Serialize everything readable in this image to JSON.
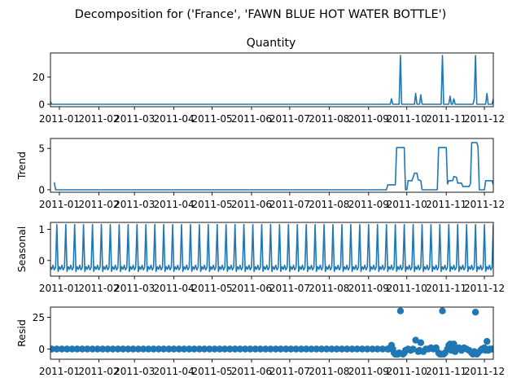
{
  "figure_title": "Decomposition for ('France', 'FAWN BLUE HOT WATER BOTTLE')",
  "colors": {
    "line": "#1f77b4",
    "axes": "#000000",
    "background": "#ffffff"
  },
  "chart_data": [
    {
      "type": "line",
      "title": "Quantity",
      "ylabel": "",
      "ylim": [
        -1.8,
        37.8
      ],
      "yticks": [
        0,
        20
      ],
      "grid": false,
      "x_range_days": [
        -7,
        341
      ],
      "xtick_labels": [
        "2011-01",
        "2011-02",
        "2011-03",
        "2011-04",
        "2011-05",
        "2011-06",
        "2011-07",
        "2011-08",
        "2011-09",
        "2011-10",
        "2011-11",
        "2011-12"
      ],
      "xtick_days": [
        0,
        31,
        59,
        90,
        120,
        151,
        181,
        212,
        243,
        273,
        304,
        334
      ],
      "series": [
        {
          "points": [
            [
              -7,
              2
            ],
            [
              -6,
              0
            ],
            [
              260,
              0
            ],
            [
              261,
              4
            ],
            [
              262,
              0
            ],
            [
              267,
              0
            ],
            [
              268,
              36
            ],
            [
              269,
              0
            ],
            [
              279,
              0
            ],
            [
              280,
              8
            ],
            [
              281,
              0
            ],
            [
              283,
              0
            ],
            [
              284,
              7
            ],
            [
              285,
              0
            ],
            [
              300,
              0
            ],
            [
              301,
              36
            ],
            [
              302,
              0
            ],
            [
              306,
              0
            ],
            [
              307,
              6
            ],
            [
              308,
              0
            ],
            [
              309,
              0
            ],
            [
              310,
              4
            ],
            [
              311,
              0
            ],
            [
              325,
              0
            ],
            [
              326,
              4
            ],
            [
              327,
              36
            ],
            [
              328,
              0
            ],
            [
              335,
              0
            ],
            [
              336,
              8
            ],
            [
              337,
              0
            ],
            [
              340,
              0
            ],
            [
              341,
              4
            ]
          ]
        }
      ]
    },
    {
      "type": "line",
      "title": "",
      "ylabel": "Trend",
      "ylim": [
        -0.3,
        6.2
      ],
      "yticks": [
        0,
        5
      ],
      "grid": false,
      "x_range_days": [
        -7,
        341
      ],
      "xtick_labels": [
        "2011-01",
        "2011-02",
        "2011-03",
        "2011-04",
        "2011-05",
        "2011-06",
        "2011-07",
        "2011-08",
        "2011-09",
        "2011-10",
        "2011-11",
        "2011-12"
      ],
      "xtick_days": [
        0,
        31,
        59,
        90,
        120,
        151,
        181,
        212,
        243,
        273,
        304,
        334
      ],
      "series": [
        {
          "points": [
            [
              -4,
              0.9
            ],
            [
              -3,
              0
            ],
            [
              257,
              0
            ],
            [
              258,
              0.6
            ],
            [
              264,
              0.6
            ],
            [
              265,
              5.1
            ],
            [
              271,
              5.1
            ],
            [
              272,
              0
            ],
            [
              273,
              0
            ],
            [
              274,
              1.1
            ],
            [
              277,
              1.1
            ],
            [
              278,
              1.5
            ],
            [
              279,
              2
            ],
            [
              281,
              2
            ],
            [
              282,
              1.2
            ],
            [
              284,
              1.1
            ],
            [
              285,
              0
            ],
            [
              297,
              0
            ],
            [
              298,
              5.1
            ],
            [
              304,
              5.1
            ],
            [
              305,
              0.7
            ],
            [
              306,
              1.1
            ],
            [
              309,
              1.1
            ],
            [
              310,
              1.6
            ],
            [
              312,
              1.5
            ],
            [
              313,
              0.8
            ],
            [
              316,
              0.8
            ],
            [
              317,
              0.4
            ],
            [
              322,
              0.4
            ],
            [
              323,
              0.7
            ],
            [
              324,
              5.7
            ],
            [
              328,
              5.7
            ],
            [
              329,
              5.2
            ],
            [
              330,
              0
            ],
            [
              334,
              0
            ],
            [
              335,
              1.1
            ],
            [
              340,
              1.1
            ],
            [
              341,
              0.6
            ]
          ]
        }
      ]
    },
    {
      "type": "line",
      "title": "",
      "ylabel": "Seasonal",
      "ylim": [
        -0.5,
        1.22
      ],
      "yticks": [
        0,
        1
      ],
      "grid": false,
      "x_range_days": [
        -7,
        341
      ],
      "xtick_labels": [
        "2011-01",
        "2011-02",
        "2011-03",
        "2011-04",
        "2011-05",
        "2011-06",
        "2011-07",
        "2011-08",
        "2011-09",
        "2011-10",
        "2011-11",
        "2011-12"
      ],
      "xtick_days": [
        0,
        31,
        59,
        90,
        120,
        151,
        181,
        212,
        243,
        273,
        304,
        334
      ],
      "seasonal_period_days": 7,
      "seasonal_pattern": [
        1.15,
        -0.35,
        -0.2,
        -0.28,
        -0.15,
        -0.3,
        -0.22
      ],
      "seasonal_start_day": -2,
      "series": [
        {
          "points": []
        }
      ]
    },
    {
      "type": "scatter",
      "title": "",
      "ylabel": "Resid",
      "ylim": [
        -8,
        33
      ],
      "yticks": [
        0,
        25
      ],
      "grid": false,
      "x_range_days": [
        -7,
        341
      ],
      "xtick_labels": [
        "2011-01",
        "2011-02",
        "2011-03",
        "2011-04",
        "2011-05",
        "2011-06",
        "2011-07",
        "2011-08",
        "2011-09",
        "2011-10",
        "2011-11",
        "2011-12"
      ],
      "xtick_days": [
        0,
        31,
        59,
        90,
        120,
        151,
        181,
        212,
        243,
        273,
        304,
        334
      ],
      "baseline_points": {
        "from_day": -6,
        "to_day": 258,
        "step_days": 4,
        "value": 0
      },
      "series": [
        {
          "points": [
            [
              258,
              0
            ],
            [
              259,
              0
            ],
            [
              261,
              3
            ],
            [
              262,
              0
            ],
            [
              263,
              -3
            ],
            [
              264,
              -4
            ],
            [
              265,
              -4
            ],
            [
              266,
              -4
            ],
            [
              267,
              -3
            ],
            [
              268,
              30
            ],
            [
              270,
              -4
            ],
            [
              271,
              -3
            ],
            [
              272,
              -1
            ],
            [
              274,
              0
            ],
            [
              276,
              -1
            ],
            [
              278,
              0
            ],
            [
              280,
              7
            ],
            [
              282,
              -2
            ],
            [
              283,
              -1
            ],
            [
              284,
              5
            ],
            [
              286,
              -2
            ],
            [
              288,
              0
            ],
            [
              290,
              0
            ],
            [
              292,
              1
            ],
            [
              294,
              0
            ],
            [
              296,
              1
            ],
            [
              298,
              -3
            ],
            [
              299,
              -4
            ],
            [
              300,
              -4
            ],
            [
              301,
              30
            ],
            [
              302,
              -4
            ],
            [
              303,
              -3
            ],
            [
              305,
              0
            ],
            [
              306,
              3
            ],
            [
              307,
              4
            ],
            [
              308,
              -1
            ],
            [
              309,
              0
            ],
            [
              310,
              4
            ],
            [
              311,
              -2
            ],
            [
              312,
              0
            ],
            [
              314,
              1
            ],
            [
              316,
              -1
            ],
            [
              318,
              1
            ],
            [
              320,
              0
            ],
            [
              322,
              -1
            ],
            [
              324,
              -3
            ],
            [
              325,
              -4
            ],
            [
              326,
              -2
            ],
            [
              327,
              29
            ],
            [
              328,
              -4
            ],
            [
              329,
              -3
            ],
            [
              331,
              -1
            ],
            [
              332,
              0
            ],
            [
              333,
              0
            ],
            [
              334,
              1
            ],
            [
              335,
              -1
            ],
            [
              336,
              6
            ],
            [
              337,
              -1
            ],
            [
              338,
              0
            ],
            [
              339,
              0
            ],
            [
              340,
              0
            ],
            [
              341,
              0
            ]
          ]
        }
      ]
    }
  ]
}
